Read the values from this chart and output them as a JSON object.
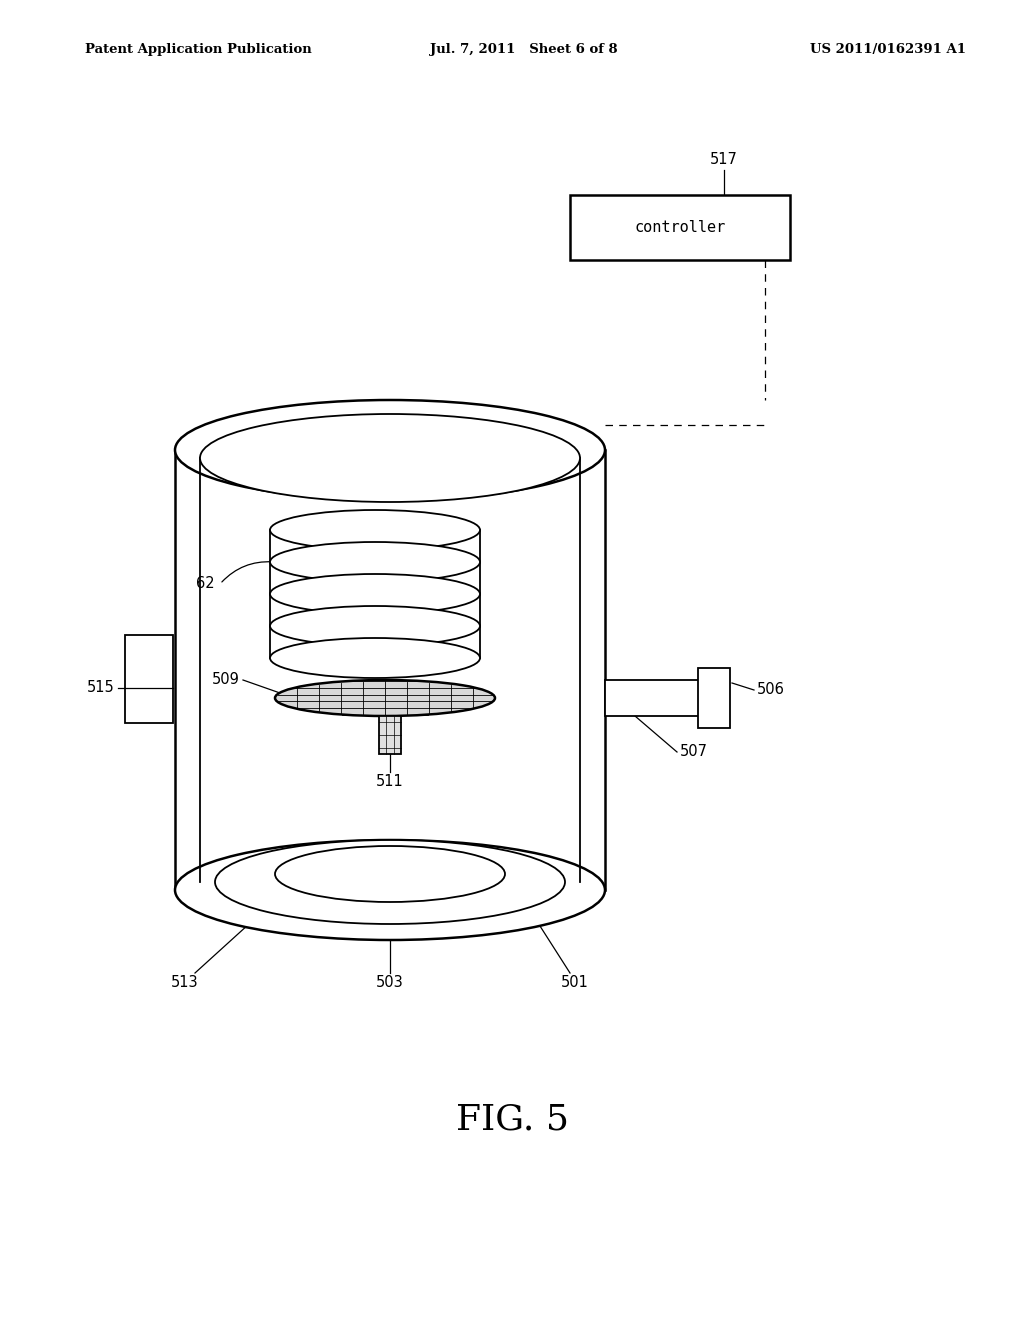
{
  "bg_color": "#ffffff",
  "line_color": "#000000",
  "header_left": "Patent Application Publication",
  "header_mid": "Jul. 7, 2011   Sheet 6 of 8",
  "header_right": "US 2011/0162391 A1",
  "figure_label": "FIG. 5",
  "controller_label": "controller"
}
